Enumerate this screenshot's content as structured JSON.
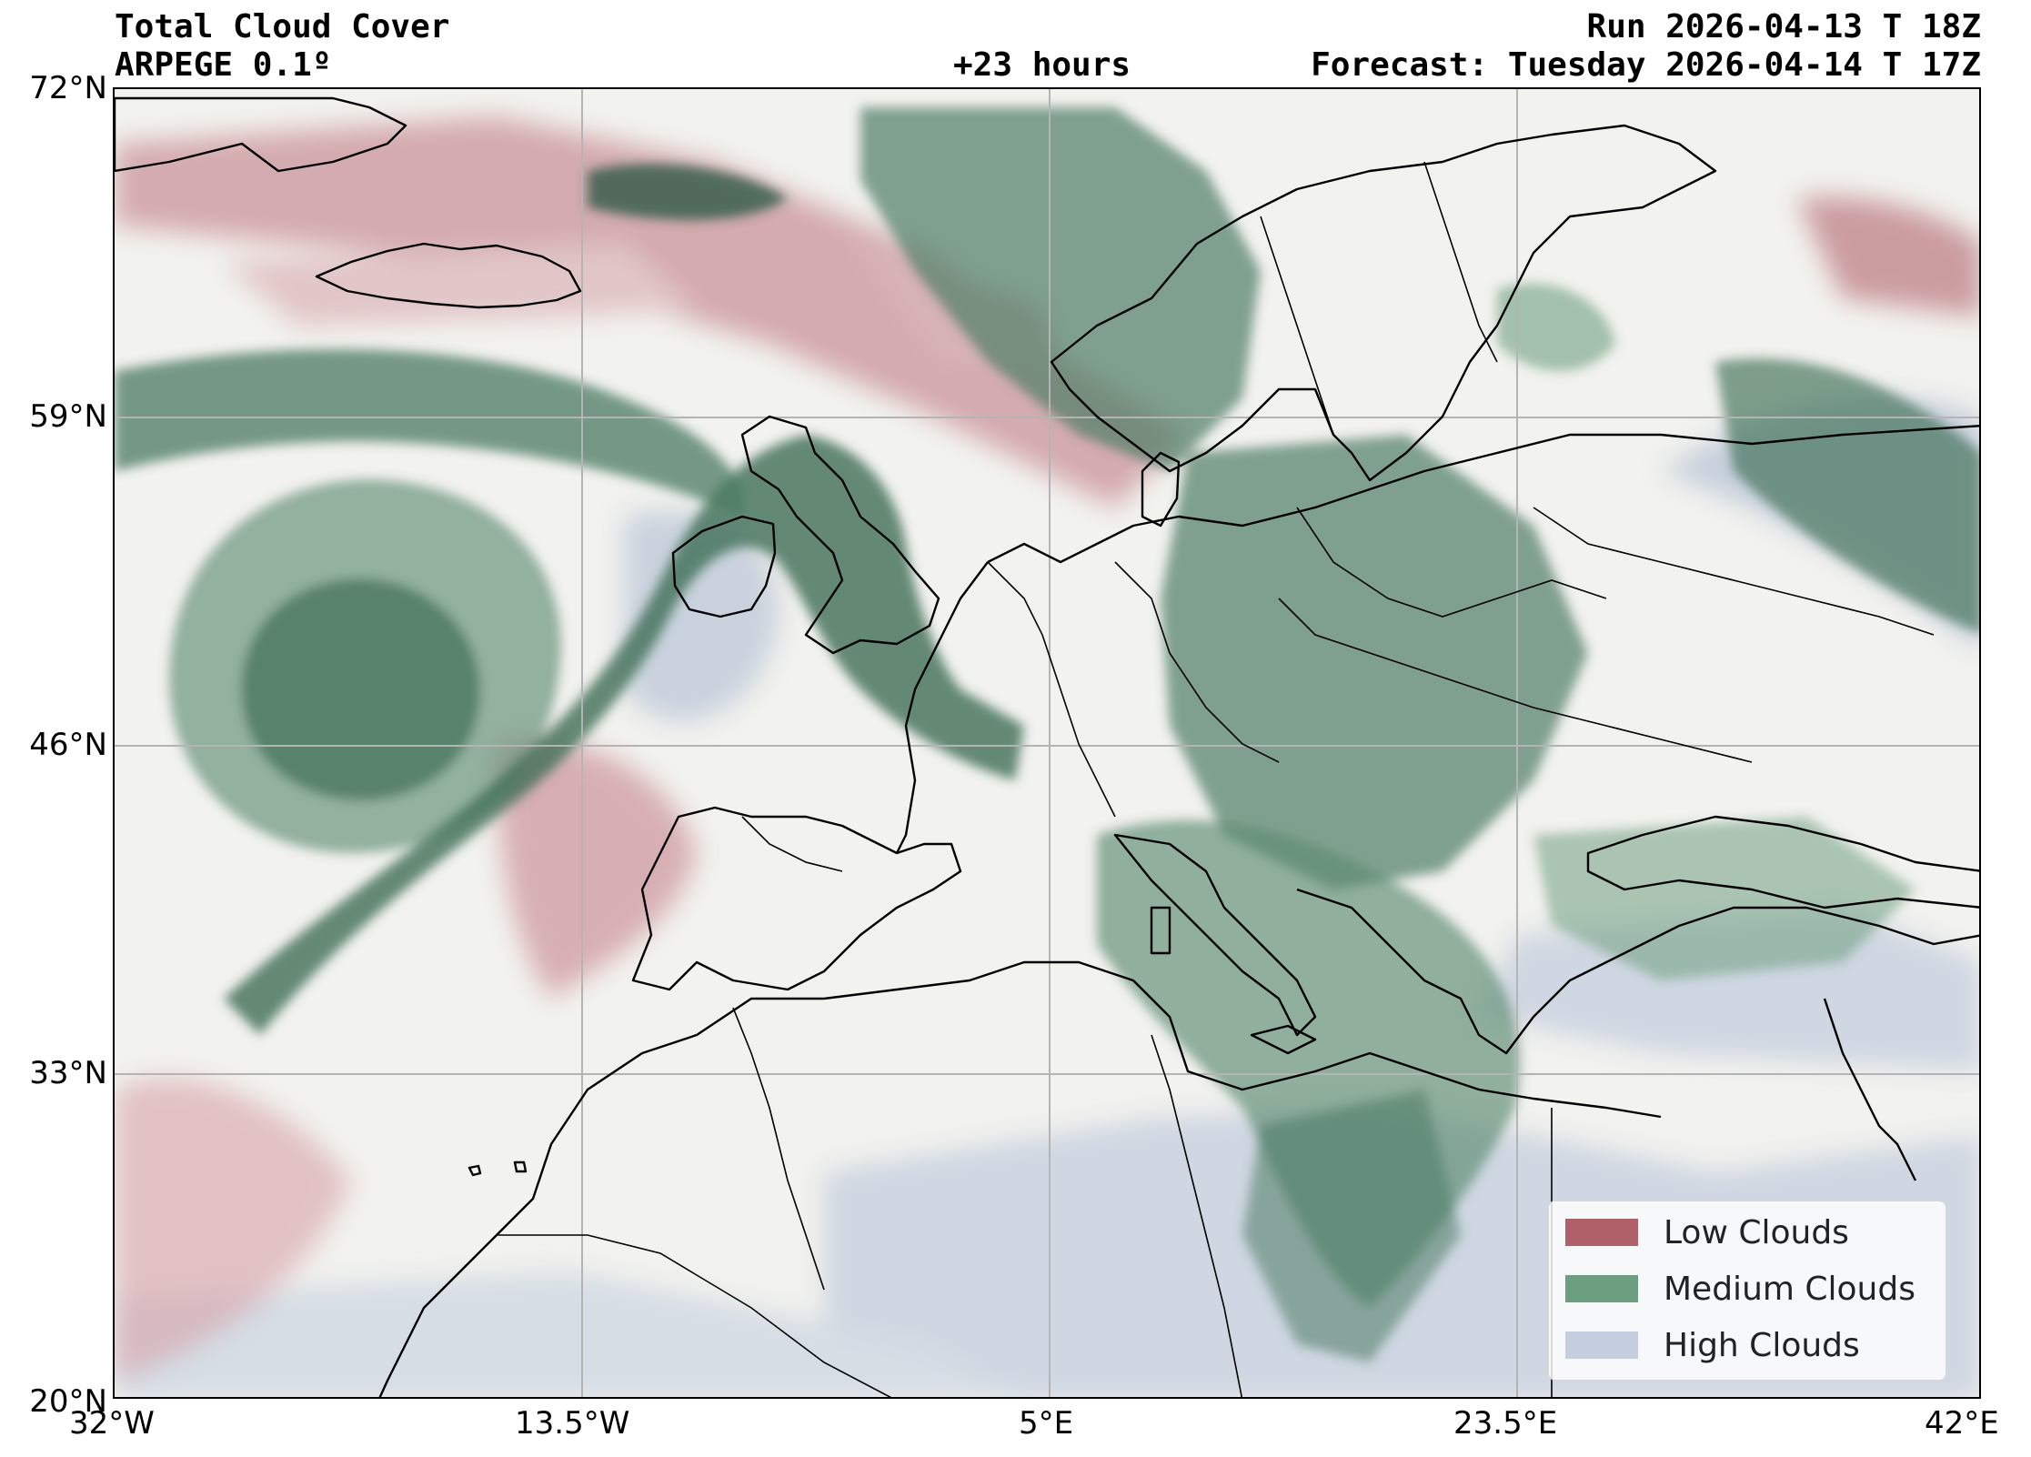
{
  "header": {
    "title": "Total Cloud Cover",
    "model": "ARPEGE 0.1º",
    "lead_time": "+23 hours",
    "run": "Run 2026-04-13 T 18Z",
    "forecast": "Forecast: Tuesday 2026-04-14 T 17Z"
  },
  "axes": {
    "lat_ticks": [
      "72°N",
      "59°N",
      "46°N",
      "33°N",
      "20°N"
    ],
    "lon_ticks": [
      "32°W",
      "13.5°W",
      "5°E",
      "23.5°E",
      "42°E"
    ]
  },
  "legend": {
    "items": [
      {
        "label": "Low Clouds",
        "color": "#b06068"
      },
      {
        "label": "Medium Clouds",
        "color": "#6e9e80"
      },
      {
        "label": "High Clouds",
        "color": "#c4cede"
      }
    ]
  },
  "colors": {
    "low": "#b06068",
    "medium": "#3e6e56",
    "medium_light": "#6e9e80",
    "high": "#c4cede",
    "land_bg": "#f2f2ee",
    "coast": "#000000",
    "grid": "#b4b4b4"
  }
}
